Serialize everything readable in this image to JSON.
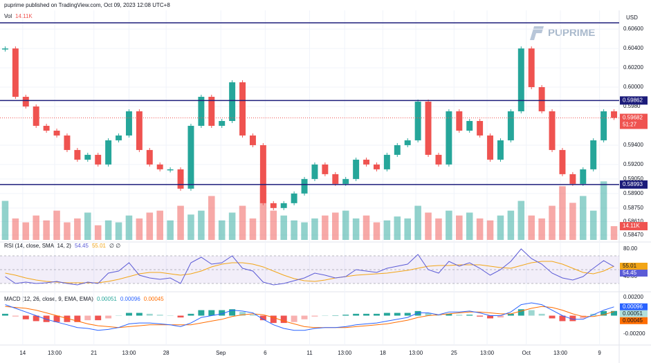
{
  "chart_data": {
    "type": "candlestick",
    "header": "puprime published on TradingView.com, Oct 09, 2023 12:08 UTC+8",
    "currency": "USD",
    "logo": "PUPRIME",
    "xlim": [
      -0.5,
      59.5
    ],
    "xticks": [
      {
        "value": 1.7,
        "label": "14"
      },
      {
        "value": 4.8,
        "label": "13:00"
      },
      {
        "value": 8.6,
        "label": "21"
      },
      {
        "value": 12.0,
        "label": "13:00"
      },
      {
        "value": 15.6,
        "label": "28"
      },
      {
        "value": 20.9,
        "label": "Sep"
      },
      {
        "value": 25.2,
        "label": "6"
      },
      {
        "value": 29.5,
        "label": "11"
      },
      {
        "value": 32.9,
        "label": "13:00"
      },
      {
        "value": 36.6,
        "label": "18"
      },
      {
        "value": 39.8,
        "label": "13:00"
      },
      {
        "value": 43.5,
        "label": "25"
      },
      {
        "value": 46.7,
        "label": "13:00"
      },
      {
        "value": 50.5,
        "label": "Oct"
      },
      {
        "value": 53.8,
        "label": "13:00"
      },
      {
        "value": 57.6,
        "label": "9"
      }
    ],
    "price": {
      "ylim": [
        0.5842,
        0.60794
      ],
      "yticks": [
        {
          "value": 0.606,
          "label": "0.60600"
        },
        {
          "value": 0.604,
          "label": "0.60400"
        },
        {
          "value": 0.602,
          "label": "0.60200"
        },
        {
          "value": 0.6,
          "label": "0.60000"
        },
        {
          "value": 0.598,
          "label": "0.5980"
        },
        {
          "value": 0.594,
          "label": "0.59400"
        },
        {
          "value": 0.592,
          "label": "0.59200"
        },
        {
          "value": 0.5905,
          "label": "0.59050"
        },
        {
          "value": 0.589,
          "label": "0.58900"
        },
        {
          "value": 0.5875,
          "label": "0.58750"
        },
        {
          "value": 0.5861,
          "label": "0.58610"
        },
        {
          "value": 0.5847,
          "label": "0.58470"
        }
      ],
      "close": [
        0.604,
        0.599,
        0.598,
        0.596,
        0.5955,
        0.595,
        0.5935,
        0.5925,
        0.593,
        0.592,
        0.5945,
        0.595,
        0.5975,
        0.5935,
        0.592,
        0.5915,
        0.5915,
        0.5895,
        0.596,
        0.599,
        0.596,
        0.5965,
        0.6005,
        0.595,
        0.594,
        0.588,
        0.5875,
        0.588,
        0.589,
        0.5905,
        0.592,
        0.591,
        0.59,
        0.5905,
        0.5925,
        0.592,
        0.5915,
        0.593,
        0.594,
        0.5945,
        0.5985,
        0.593,
        0.592,
        0.5975,
        0.5955,
        0.5965,
        0.595,
        0.5925,
        0.5945,
        0.5975,
        0.604,
        0.6,
        0.5975,
        0.5935,
        0.591,
        0.59,
        0.5915,
        0.5945,
        0.5975,
        0.59682
      ],
      "up_color": "#26a69a",
      "down_color": "#ef5350",
      "levels": [
        0.60665,
        0.59862,
        0.58993
      ],
      "level_color": "#1c1c7a",
      "countdown": "51:27"
    },
    "volume": {
      "title": "Vol",
      "ylim": [
        0,
        85
      ],
      "value_label": "14.11K",
      "values": [
        40,
        22,
        18,
        25,
        20,
        30,
        18,
        22,
        28,
        15,
        20,
        18,
        25,
        22,
        28,
        30,
        20,
        35,
        26,
        30,
        45,
        20,
        28,
        35,
        22,
        55,
        30,
        25,
        20,
        18,
        22,
        25,
        28,
        30,
        22,
        25,
        18,
        20,
        24,
        22,
        35,
        28,
        22,
        30,
        25,
        28,
        22,
        20,
        25,
        30,
        40,
        25,
        22,
        35,
        55,
        38,
        45,
        30,
        60,
        14.11
      ]
    },
    "rsi": {
      "title": "RSI (14, close, SMA, 14, 2)",
      "extra": "∅ ∅",
      "ylim": [
        23,
        88
      ],
      "yticks": [
        {
          "value": 80,
          "label": "80.00"
        },
        {
          "value": 40,
          "label": "40.00"
        }
      ],
      "bands": [
        70,
        50,
        30
      ],
      "color": "#5b5bd6",
      "ma_color": "#f2a516",
      "values": [
        40,
        30,
        32,
        30,
        31,
        33,
        30,
        28,
        32,
        30,
        45,
        48,
        60,
        42,
        38,
        36,
        38,
        30,
        60,
        68,
        58,
        60,
        70,
        52,
        48,
        32,
        28,
        30,
        34,
        38,
        45,
        42,
        38,
        40,
        50,
        48,
        46,
        52,
        55,
        58,
        72,
        50,
        45,
        62,
        55,
        60,
        52,
        42,
        50,
        62,
        80,
        66,
        58,
        45,
        38,
        35,
        40,
        52,
        63,
        54.45
      ],
      "ma": [
        45,
        42,
        38,
        35,
        33,
        32,
        31,
        31,
        31,
        31,
        33,
        36,
        40,
        44,
        46,
        46,
        44,
        42,
        44,
        48,
        54,
        58,
        60,
        60,
        58,
        54,
        48,
        42,
        37,
        34,
        33,
        35,
        38,
        40,
        42,
        43,
        44,
        45,
        47,
        49,
        52,
        55,
        56,
        56,
        57,
        57,
        57,
        55,
        53,
        52,
        56,
        60,
        62,
        62,
        58,
        52,
        46,
        44,
        48,
        55.01
      ]
    },
    "macd": {
      "title": "MACD (12, 26, close, 9, EMA, EMA)",
      "ylim": [
        -0.00306,
        0.00238
      ],
      "yticks": [
        {
          "value": 0.002,
          "label": "0.00200"
        },
        {
          "value": -0.002,
          "label": "-0.00200"
        }
      ],
      "macd_color": "#2962ff",
      "signal_color": "#ff6d00",
      "hist_up": "#26a69a",
      "hist_down": "#ef5350",
      "hist": [
        0.0002,
        -0.0001,
        -0.0004,
        -0.0006,
        -0.0007,
        -0.0007,
        -0.0007,
        -0.0007,
        -0.0005,
        -0.0005,
        -0.0003,
        0,
        0.0003,
        0.0003,
        0.0002,
        0.0001,
        0,
        -0.0002,
        0.0002,
        0.0006,
        0.0006,
        0.0006,
        0.0007,
        0.0004,
        0.0001,
        -0.0005,
        -0.0008,
        -0.0008,
        -0.0007,
        -0.0004,
        -0.0001,
        0,
        0,
        0.0001,
        0.0002,
        0.0002,
        0.0002,
        0.0003,
        0.0003,
        0.0003,
        0.0005,
        0.0003,
        0,
        0.0002,
        0.0001,
        0.0001,
        -0.0001,
        -0.0003,
        -0.0002,
        0.0002,
        0.0007,
        0.0006,
        0.0002,
        -0.0003,
        -0.0006,
        -0.0006,
        -0.0003,
        0.0002,
        0.0005,
        0.00051
      ],
      "macd": [
        0.0012,
        0.0008,
        0.0004,
        0,
        -0.0004,
        -0.0007,
        -0.001,
        -0.0013,
        -0.0014,
        -0.0016,
        -0.0015,
        -0.0013,
        -0.0009,
        -0.0008,
        -0.0008,
        -0.0009,
        -0.001,
        -0.0012,
        -0.0008,
        -0.0002,
        0,
        0.0002,
        0.0006,
        0.0005,
        0.0003,
        -0.0004,
        -0.001,
        -0.0014,
        -0.0016,
        -0.0016,
        -0.0014,
        -0.0013,
        -0.0013,
        -0.0012,
        -0.001,
        -0.0009,
        -0.0008,
        -0.0006,
        -0.0004,
        -0.0002,
        0.0003,
        0.0003,
        0.0001,
        0.0004,
        0.0004,
        0.0005,
        0.0003,
        0,
        0,
        0.0004,
        0.0012,
        0.0014,
        0.0012,
        0.0006,
        0,
        -0.0004,
        -0.0004,
        0.0001,
        0.0006,
        0.00096
      ],
      "signal": [
        0.001,
        0.0009,
        0.0008,
        0.0006,
        0.0003,
        0,
        -0.0003,
        -0.0006,
        -0.0009,
        -0.0011,
        -0.0012,
        -0.0013,
        -0.0012,
        -0.0011,
        -0.001,
        -0.001,
        -0.001,
        -0.001,
        -0.001,
        -0.0008,
        -0.0006,
        -0.0004,
        -0.0001,
        0.0001,
        0.0002,
        0.0001,
        -0.0002,
        -0.0006,
        -0.0009,
        -0.0012,
        -0.0013,
        -0.0013,
        -0.0013,
        -0.0013,
        -0.0012,
        -0.0011,
        -0.001,
        -0.0009,
        -0.0007,
        -0.0005,
        -0.0002,
        0,
        0.0001,
        0.0002,
        0.0003,
        0.0004,
        0.0004,
        0.0003,
        0.0002,
        0.0002,
        0.0005,
        0.0008,
        0.001,
        0.0009,
        0.0006,
        0.0002,
        -0.0001,
        -0.0001,
        0.0001,
        0.00045
      ]
    }
  }
}
